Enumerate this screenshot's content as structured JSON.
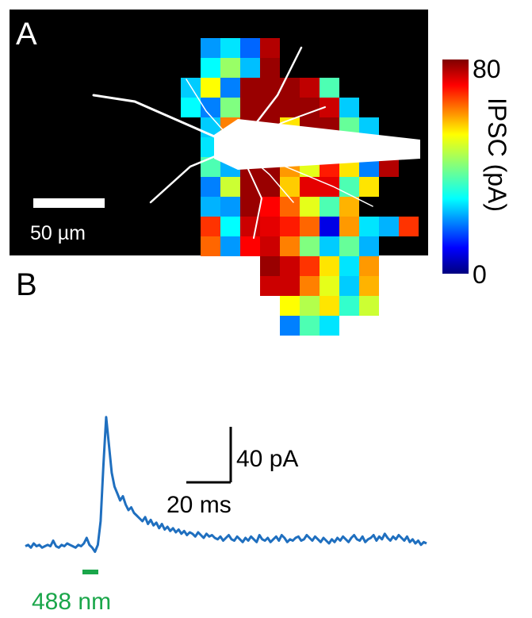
{
  "panels": {
    "a_label": "A",
    "b_label": "B"
  },
  "map": {
    "scale_bar_label": "50 µm",
    "colorbar": {
      "title": "IPSC (pA)",
      "max_label": "80",
      "min_label": "0",
      "min": 0,
      "max": 80
    },
    "grid_rows": [
      [
        null,
        null,
        null,
        null,
        null,
        22,
        28,
        18,
        76,
        null,
        null,
        null,
        null,
        null,
        null,
        null,
        null
      ],
      [
        null,
        null,
        null,
        null,
        null,
        30,
        42,
        25,
        78,
        null,
        null,
        null,
        null,
        null,
        null,
        null,
        null
      ],
      [
        null,
        null,
        null,
        null,
        26,
        50,
        20,
        78,
        78,
        78,
        75,
        36,
        null,
        null,
        null,
        null,
        null
      ],
      [
        null,
        null,
        null,
        null,
        30,
        20,
        40,
        78,
        78,
        78,
        78,
        74,
        26,
        null,
        null,
        null,
        null
      ],
      [
        null,
        null,
        null,
        null,
        null,
        26,
        60,
        78,
        78,
        52,
        78,
        78,
        38,
        26,
        null,
        null,
        null
      ],
      [
        null,
        null,
        null,
        null,
        null,
        28,
        36,
        78,
        78,
        54,
        78,
        75,
        56,
        48,
        null,
        null,
        null
      ],
      [
        null,
        null,
        null,
        null,
        null,
        36,
        24,
        78,
        78,
        58,
        48,
        68,
        52,
        20,
        76,
        null,
        null
      ],
      [
        null,
        null,
        null,
        null,
        null,
        20,
        46,
        78,
        78,
        54,
        72,
        72,
        36,
        52,
        null,
        null,
        null
      ],
      [
        null,
        null,
        null,
        null,
        null,
        24,
        22,
        78,
        70,
        62,
        48,
        36,
        56,
        null,
        null,
        null,
        null
      ],
      [
        null,
        null,
        null,
        null,
        null,
        66,
        30,
        74,
        72,
        68,
        62,
        8,
        58,
        28,
        24,
        66,
        null
      ],
      [
        null,
        null,
        null,
        null,
        null,
        62,
        22,
        70,
        74,
        60,
        40,
        26,
        38,
        24,
        null,
        null,
        null
      ],
      [
        null,
        null,
        null,
        null,
        null,
        null,
        null,
        null,
        78,
        74,
        66,
        52,
        28,
        58,
        null,
        null,
        null
      ],
      [
        null,
        null,
        null,
        null,
        null,
        null,
        null,
        null,
        74,
        74,
        60,
        48,
        26,
        56,
        null,
        null,
        null
      ],
      [
        null,
        null,
        null,
        null,
        null,
        null,
        null,
        null,
        null,
        50,
        44,
        52,
        34,
        46,
        null,
        null,
        null
      ],
      [
        null,
        null,
        null,
        null,
        null,
        null,
        null,
        null,
        null,
        20,
        36,
        28,
        null,
        null,
        null,
        null,
        null
      ]
    ]
  },
  "trace": {
    "stimulus_label": "488 nm",
    "scale_y_label": "40 pA",
    "scale_x_label": "20 ms",
    "scale_y_value": 40,
    "scale_x_value": 20,
    "colors": {
      "trace": "#1f6fbf",
      "stimulus": "#1aa64a"
    },
    "samples": [
      2,
      3,
      1,
      4,
      2,
      3,
      1,
      2,
      3,
      2,
      6,
      2,
      1,
      3,
      2,
      4,
      3,
      2,
      1,
      3,
      2,
      4,
      8,
      3,
      1,
      -2,
      3,
      20,
      60,
      95,
      75,
      55,
      45,
      40,
      35,
      38,
      32,
      28,
      30,
      26,
      24,
      22,
      20,
      23,
      18,
      21,
      17,
      19,
      15,
      18,
      14,
      16,
      13,
      15,
      12,
      14,
      11,
      13,
      10,
      12,
      11,
      9,
      12,
      10,
      8,
      11,
      9,
      10,
      8,
      7,
      9,
      6,
      8,
      10,
      7,
      6,
      9,
      7,
      5,
      8,
      6,
      9,
      7,
      5,
      10,
      7,
      6,
      8,
      5,
      7,
      9,
      6,
      10,
      8,
      5,
      7,
      6,
      8,
      9,
      6,
      7,
      10,
      8,
      6,
      9,
      7,
      5,
      8,
      6,
      4,
      7,
      5,
      8,
      6,
      9,
      7,
      5,
      8,
      10,
      7,
      6,
      9,
      5,
      7,
      8,
      10,
      6,
      9,
      7,
      11,
      8,
      6,
      9,
      7,
      10,
      8,
      6,
      9,
      5,
      7,
      4,
      6,
      3,
      5,
      4
    ]
  }
}
